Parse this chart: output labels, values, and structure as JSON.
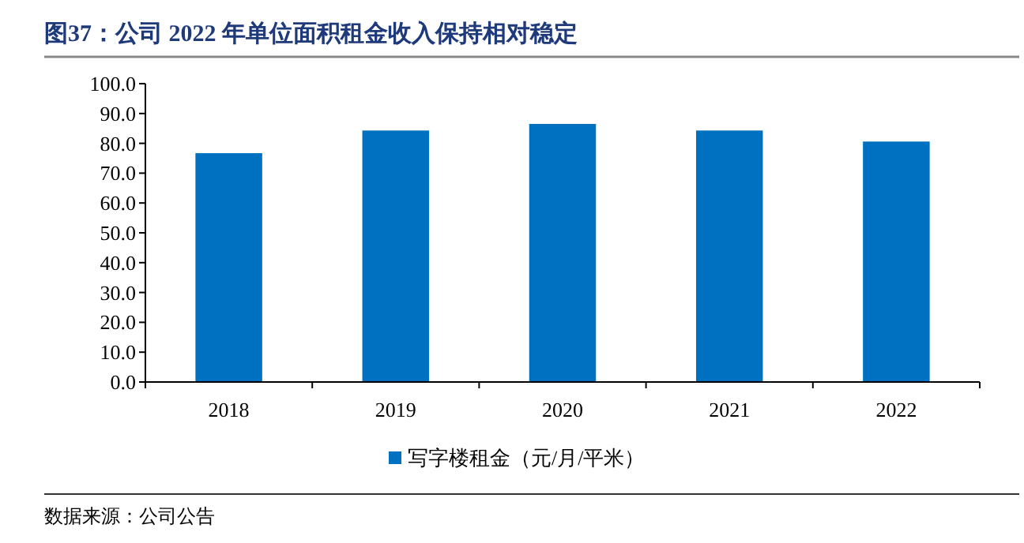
{
  "chart_data": {
    "type": "bar",
    "title": "图37：公司 2022 年单位面积租金收入保持相对稳定",
    "categories": [
      "2018",
      "2019",
      "2020",
      "2021",
      "2022"
    ],
    "series": [
      {
        "name": "写字楼租金（元/月/平米）",
        "color": "#0070c0",
        "values": [
          76.7,
          84.3,
          86.5,
          84.3,
          80.6
        ]
      }
    ],
    "ylim": [
      0,
      100
    ],
    "yticks": [
      {
        "value": 0,
        "label": "0.0"
      },
      {
        "value": 10,
        "label": "10.0"
      },
      {
        "value": 20,
        "label": "20.0"
      },
      {
        "value": 30,
        "label": "30.0"
      },
      {
        "value": 40,
        "label": "40.0"
      },
      {
        "value": 50,
        "label": "50.0"
      },
      {
        "value": 60,
        "label": "60.0"
      },
      {
        "value": 70,
        "label": "70.0"
      },
      {
        "value": 80,
        "label": "80.0"
      },
      {
        "value": 90,
        "label": "90.0"
      },
      {
        "value": 100,
        "label": "100.0"
      }
    ],
    "legend": "bottom",
    "grid": false,
    "annotations": [
      "数据来源：公司公告"
    ]
  }
}
